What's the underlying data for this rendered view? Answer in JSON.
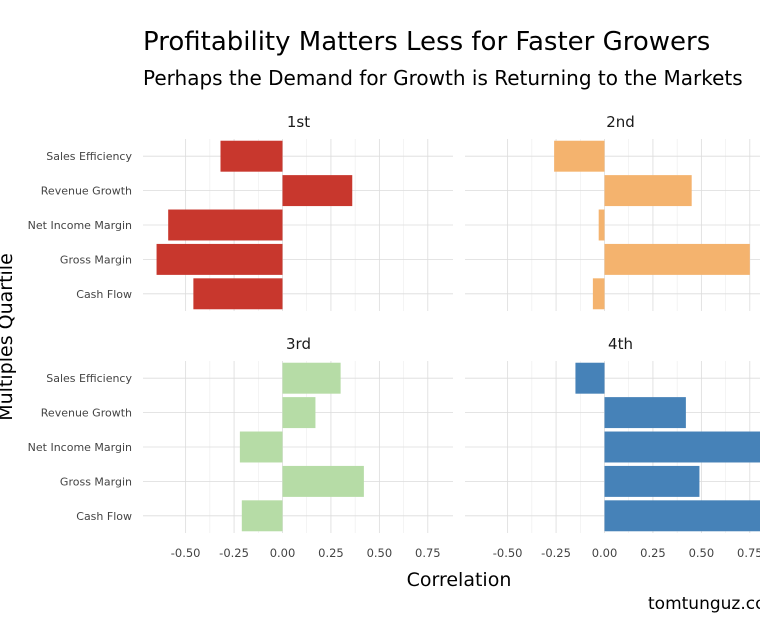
{
  "title": "Profitability Matters Less for Faster Growers",
  "subtitle": "Perhaps the Demand for Growth is Returning to the Markets",
  "credit": "tomtunguz.co",
  "chart_data": {
    "type": "bar",
    "orientation": "horizontal",
    "facets": 4,
    "xlabel": "Correlation",
    "ylabel": "Multiples Quartile",
    "xlim": [
      -0.72,
      0.88
    ],
    "xticks": [
      -0.5,
      -0.25,
      0.0,
      0.25,
      0.5,
      0.75
    ],
    "xtick_labels": [
      "-0.50",
      "-0.25",
      "0.00",
      "0.25",
      "0.50",
      "0.75"
    ],
    "categories": [
      "Sales Efficiency",
      "Revenue Growth",
      "Net Income Margin",
      "Gross Margin",
      "Cash Flow"
    ],
    "grid": true,
    "panels": [
      {
        "name": "1st",
        "color": "#c8372d",
        "values": [
          -0.32,
          0.36,
          -0.59,
          -0.65,
          -0.46
        ]
      },
      {
        "name": "2nd",
        "color": "#f4b36e",
        "values": [
          -0.26,
          0.45,
          -0.03,
          0.75,
          -0.06
        ]
      },
      {
        "name": "3rd",
        "color": "#b6dca6",
        "values": [
          0.3,
          0.17,
          -0.22,
          0.42,
          -0.21
        ]
      },
      {
        "name": "4th",
        "color": "#4682b8",
        "values": [
          -0.15,
          0.42,
          0.85,
          0.49,
          0.85
        ]
      }
    ]
  }
}
